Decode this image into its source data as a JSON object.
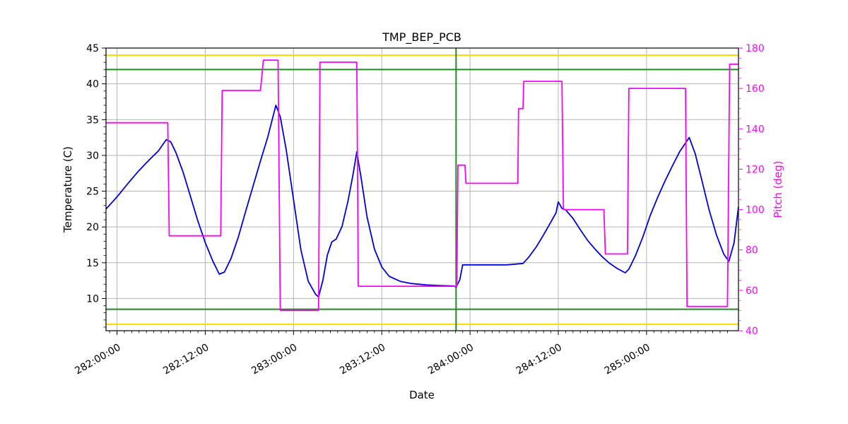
{
  "chart_data": {
    "type": "line",
    "title": "TMP_BEP_PCB",
    "xlabel": "Date",
    "ylabel_left": "Temperature (C)",
    "ylabel_right": "Pitch (deg)",
    "grid": true,
    "legend_position": "none",
    "xlim": [
      -1.5,
      84.5
    ],
    "ylim_left": [
      5.5,
      45
    ],
    "ylim_right": [
      40,
      180
    ],
    "x_ticks": [
      {
        "t": 0,
        "label": "282:00:00"
      },
      {
        "t": 12,
        "label": "282:12:00"
      },
      {
        "t": 24,
        "label": "283:00:00"
      },
      {
        "t": 36,
        "label": "283:12:00"
      },
      {
        "t": 48,
        "label": "284:00:00"
      },
      {
        "t": 60,
        "label": "284:12:00"
      },
      {
        "t": 72,
        "label": "285:00:00"
      }
    ],
    "y_ticks_left": [
      10,
      15,
      20,
      25,
      30,
      35,
      40,
      45
    ],
    "y_ticks_right": [
      40,
      60,
      80,
      100,
      120,
      140,
      160,
      180
    ],
    "colors": {
      "temperature": "#0000dd",
      "pitch": "#ff00ff",
      "grid": "#b4b4b4",
      "limit_yellow": "#ffd700",
      "limit_green": "#228b22",
      "axis": "#000000"
    },
    "limit_lines": [
      {
        "name": "yellow-limit-high",
        "orientation": "horizontal",
        "value": 44,
        "color": "#ffd700"
      },
      {
        "name": "yellow-limit-low",
        "orientation": "horizontal",
        "value": 6.4,
        "color": "#ffd700"
      },
      {
        "name": "green-limit-high",
        "orientation": "horizontal",
        "value": 42,
        "color": "#228b22"
      },
      {
        "name": "green-limit-low",
        "orientation": "horizontal",
        "value": 8.5,
        "color": "#228b22"
      },
      {
        "name": "green-event-vline",
        "orientation": "vertical",
        "value": 46.1,
        "color": "#228b22"
      }
    ],
    "series": [
      {
        "name": "temperature",
        "axis": "left",
        "color": "#0000dd",
        "points": [
          [
            -1.5,
            22.5
          ],
          [
            0,
            24.2
          ],
          [
            1.5,
            26.1
          ],
          [
            3,
            27.9
          ],
          [
            4.5,
            29.5
          ],
          [
            5.6,
            30.6
          ],
          [
            6.7,
            32.2
          ],
          [
            7.3,
            31.9
          ],
          [
            8,
            30.4
          ],
          [
            9,
            27.6
          ],
          [
            10,
            24.2
          ],
          [
            11,
            20.8
          ],
          [
            12,
            17.8
          ],
          [
            13,
            15.3
          ],
          [
            13.9,
            13.4
          ],
          [
            14.6,
            13.7
          ],
          [
            15.5,
            15.6
          ],
          [
            16.5,
            18.6
          ],
          [
            17.5,
            22.2
          ],
          [
            18.5,
            25.7
          ],
          [
            19.5,
            29.2
          ],
          [
            20.5,
            32.6
          ],
          [
            21.6,
            37
          ],
          [
            22.2,
            35.4
          ],
          [
            23,
            30.8
          ],
          [
            24,
            23.8
          ],
          [
            25,
            16.8
          ],
          [
            26,
            12.4
          ],
          [
            27,
            10.6
          ],
          [
            27.4,
            10.2
          ],
          [
            28,
            12.6
          ],
          [
            28.6,
            16.1
          ],
          [
            29.2,
            17.9
          ],
          [
            29.8,
            18.3
          ],
          [
            30.6,
            20.1
          ],
          [
            31.4,
            23.6
          ],
          [
            32.1,
            27.4
          ],
          [
            32.6,
            30.5
          ],
          [
            33.2,
            26.8
          ],
          [
            34,
            21.4
          ],
          [
            35,
            16.9
          ],
          [
            36,
            14.4
          ],
          [
            37,
            13.1
          ],
          [
            38.5,
            12.4
          ],
          [
            40,
            12.1
          ],
          [
            42,
            11.9
          ],
          [
            44,
            11.8
          ],
          [
            45.8,
            11.75
          ],
          [
            46.1,
            11.6
          ],
          [
            46.6,
            12.6
          ],
          [
            47,
            14.7
          ],
          [
            49,
            14.7
          ],
          [
            51,
            14.7
          ],
          [
            53,
            14.7
          ],
          [
            55.2,
            14.9
          ],
          [
            56,
            15.8
          ],
          [
            57,
            17.2
          ],
          [
            58,
            18.9
          ],
          [
            59,
            20.7
          ],
          [
            59.7,
            22
          ],
          [
            60,
            23.5
          ],
          [
            60.5,
            22.6
          ],
          [
            61,
            22.4
          ],
          [
            62,
            21.2
          ],
          [
            63,
            19.6
          ],
          [
            64,
            18.1
          ],
          [
            65,
            16.9
          ],
          [
            66,
            15.8
          ],
          [
            67,
            14.9
          ],
          [
            68,
            14.2
          ],
          [
            69.1,
            13.6
          ],
          [
            69.6,
            14.1
          ],
          [
            70.5,
            16
          ],
          [
            71.5,
            18.6
          ],
          [
            72.5,
            21.6
          ],
          [
            73.5,
            24.1
          ],
          [
            74.5,
            26.4
          ],
          [
            75.5,
            28.5
          ],
          [
            76.5,
            30.5
          ],
          [
            77.8,
            32.5
          ],
          [
            78.6,
            30.3
          ],
          [
            79.5,
            26.6
          ],
          [
            80.5,
            22.4
          ],
          [
            81.5,
            18.9
          ],
          [
            82.5,
            16.2
          ],
          [
            83.2,
            15.2
          ],
          [
            83.9,
            17.8
          ],
          [
            84.5,
            22.8
          ]
        ]
      },
      {
        "name": "pitch",
        "axis": "right",
        "color": "#ff00ff",
        "points": [
          [
            -1.5,
            143
          ],
          [
            6.9,
            143
          ],
          [
            7.1,
            87
          ],
          [
            14.1,
            87
          ],
          [
            14.3,
            159
          ],
          [
            19.5,
            159
          ],
          [
            19.9,
            174
          ],
          [
            21.9,
            174
          ],
          [
            22.2,
            50
          ],
          [
            27.4,
            50
          ],
          [
            27.6,
            173
          ],
          [
            32.6,
            173
          ],
          [
            32.8,
            62
          ],
          [
            40,
            62
          ],
          [
            46.2,
            62
          ],
          [
            46.35,
            122
          ],
          [
            47.3,
            122
          ],
          [
            47.45,
            113
          ],
          [
            54.5,
            113
          ],
          [
            54.6,
            150
          ],
          [
            55.2,
            150
          ],
          [
            55.3,
            163.5
          ],
          [
            60.5,
            163.5
          ],
          [
            60.7,
            100
          ],
          [
            66.2,
            100
          ],
          [
            66.4,
            78
          ],
          [
            69.4,
            78
          ],
          [
            69.6,
            160
          ],
          [
            77.3,
            160
          ],
          [
            77.5,
            52
          ],
          [
            83,
            52
          ],
          [
            83.3,
            172
          ],
          [
            84.5,
            172
          ]
        ]
      }
    ]
  }
}
